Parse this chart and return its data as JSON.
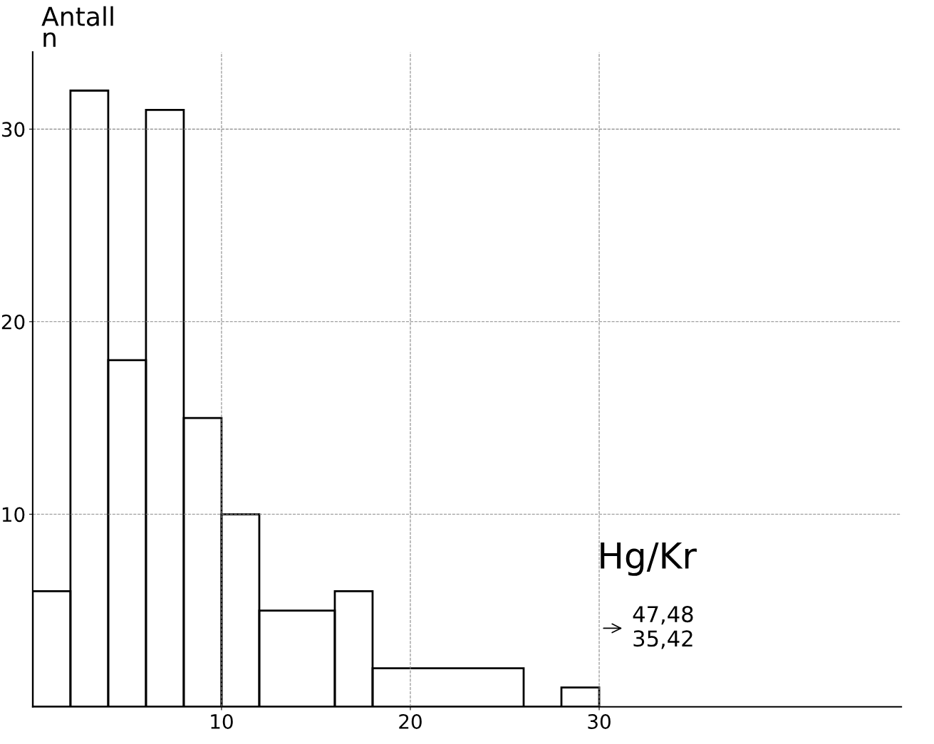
{
  "chart_data": {
    "type": "histogram",
    "xlabel": "Hg/Kr",
    "ylabel": "Antall\nn",
    "bins": [
      0,
      2,
      4,
      6,
      8,
      10,
      12,
      16,
      18,
      26,
      28,
      30
    ],
    "values": [
      6,
      32,
      18,
      31,
      15,
      10,
      5,
      6,
      2,
      0,
      1
    ],
    "color": "#000000",
    "xlim": [
      0,
      46
    ],
    "xticks": [
      10,
      20,
      30
    ],
    "ylim": [
      0,
      34
    ],
    "yticks": [
      10,
      20,
      30
    ],
    "grid": true,
    "annotations": [
      "47,48\n35,42"
    ]
  }
}
